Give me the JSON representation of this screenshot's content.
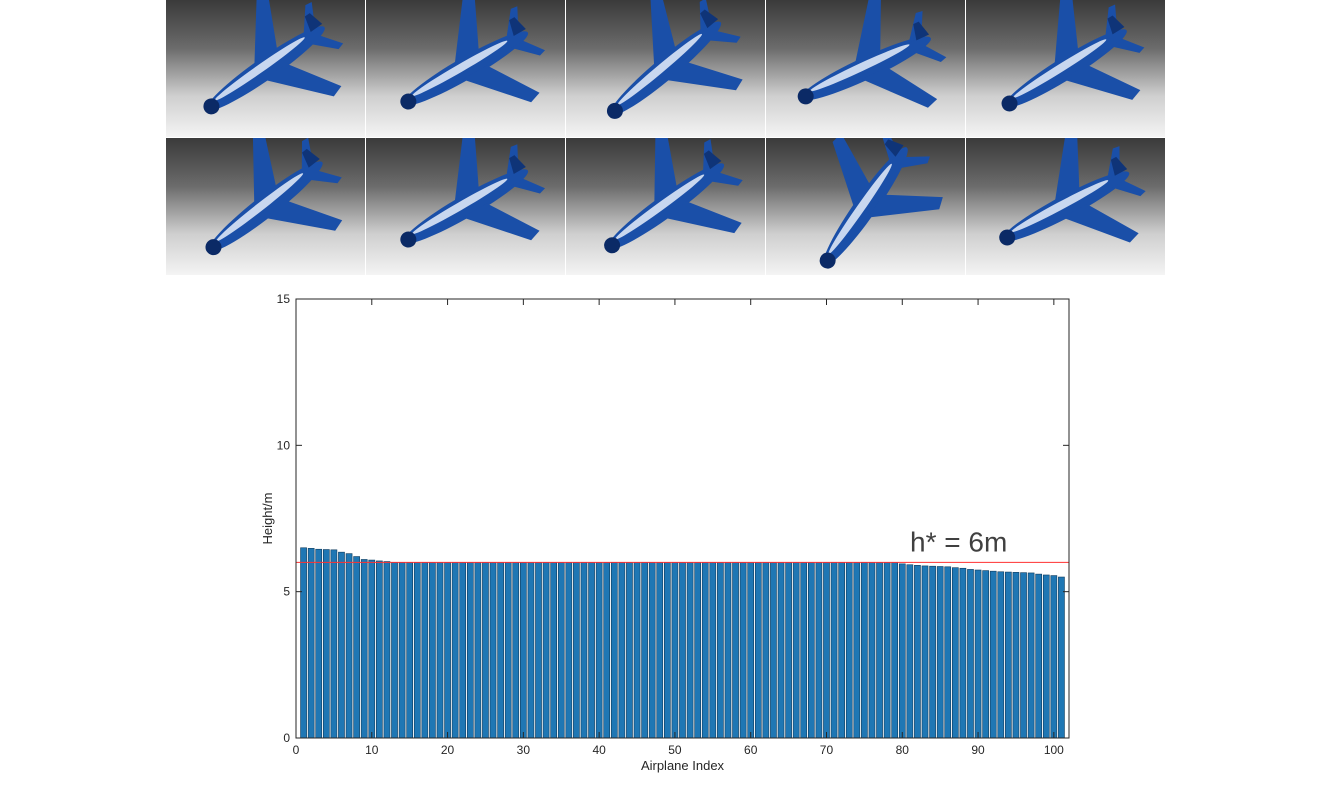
{
  "colors": {
    "bar_fill": "#1f77b4",
    "bar_edge": "#0d3a5c",
    "reference_line": "#ff3030",
    "plane_body": "#1a4fa8",
    "plane_highlight": "#e8eefc"
  },
  "thumbnails": [
    {
      "icon": "airplane-model-icon",
      "angle": -35
    },
    {
      "icon": "airplane-model-icon",
      "angle": -30
    },
    {
      "icon": "airplane-model-icon",
      "angle": -40
    },
    {
      "icon": "airplane-model-icon",
      "angle": -25
    },
    {
      "icon": "airplane-model-icon",
      "angle": -32
    },
    {
      "icon": "airplane-model-icon",
      "angle": -38
    },
    {
      "icon": "airplane-model-icon",
      "angle": -30
    },
    {
      "icon": "airplane-model-icon",
      "angle": -36
    },
    {
      "icon": "airplane-model-icon",
      "angle": -55
    },
    {
      "icon": "airplane-model-icon",
      "angle": -28
    }
  ],
  "chart_data": {
    "type": "bar",
    "xlabel": "Airplane Index",
    "ylabel": "Height/m",
    "ylim": [
      0,
      15
    ],
    "xlim": [
      0,
      102
    ],
    "yticks": [
      0,
      5,
      10,
      15
    ],
    "xticks": [
      0,
      10,
      20,
      30,
      40,
      50,
      60,
      70,
      80,
      90,
      100
    ],
    "grid": false,
    "reference_line": {
      "y": 6,
      "label": "h* = 6m"
    },
    "x": [
      1,
      2,
      3,
      4,
      5,
      6,
      7,
      8,
      9,
      10,
      11,
      12,
      13,
      14,
      15,
      16,
      17,
      18,
      19,
      20,
      21,
      22,
      23,
      24,
      25,
      26,
      27,
      28,
      29,
      30,
      31,
      32,
      33,
      34,
      35,
      36,
      37,
      38,
      39,
      40,
      41,
      42,
      43,
      44,
      45,
      46,
      47,
      48,
      49,
      50,
      51,
      52,
      53,
      54,
      55,
      56,
      57,
      58,
      59,
      60,
      61,
      62,
      63,
      64,
      65,
      66,
      67,
      68,
      69,
      70,
      71,
      72,
      73,
      74,
      75,
      76,
      77,
      78,
      79,
      80,
      81,
      82,
      83,
      84,
      85,
      86,
      87,
      88,
      89,
      90,
      91,
      92,
      93,
      94,
      95,
      96,
      97,
      98,
      99,
      100,
      101
    ],
    "values": [
      6.5,
      6.48,
      6.45,
      6.44,
      6.43,
      6.35,
      6.3,
      6.2,
      6.1,
      6.08,
      6.05,
      6.03,
      6.0,
      6.0,
      6.0,
      6.0,
      6.0,
      6.0,
      6.0,
      6.0,
      6.0,
      6.0,
      6.0,
      6.0,
      6.0,
      6.0,
      6.0,
      6.0,
      6.0,
      6.0,
      6.0,
      6.0,
      6.0,
      6.0,
      6.0,
      6.0,
      6.0,
      6.0,
      6.0,
      6.0,
      6.0,
      6.0,
      6.0,
      6.0,
      6.0,
      6.0,
      6.0,
      6.0,
      6.0,
      6.0,
      6.0,
      6.0,
      6.0,
      6.0,
      6.0,
      6.0,
      6.0,
      6.0,
      6.0,
      6.0,
      6.0,
      6.0,
      6.0,
      6.0,
      6.0,
      6.0,
      6.0,
      6.0,
      6.0,
      6.0,
      6.0,
      6.0,
      6.0,
      6.0,
      6.0,
      6.0,
      6.0,
      6.0,
      6.0,
      5.95,
      5.92,
      5.9,
      5.88,
      5.87,
      5.86,
      5.85,
      5.82,
      5.8,
      5.76,
      5.74,
      5.72,
      5.7,
      5.68,
      5.67,
      5.66,
      5.65,
      5.64,
      5.6,
      5.57,
      5.55,
      5.5
    ]
  }
}
